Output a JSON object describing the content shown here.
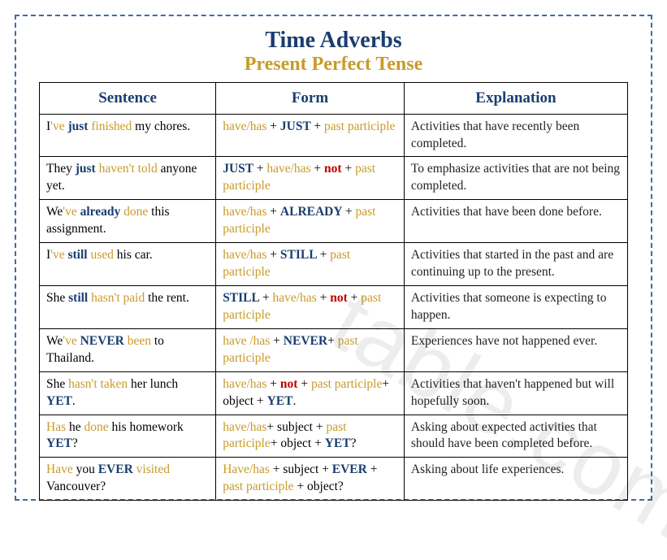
{
  "title": {
    "main": "Time Adverbs",
    "sub": "Present Perfect Tense"
  },
  "headers": {
    "col1": "Sentence",
    "col2": "Form",
    "col3": "Explanation"
  },
  "colors": {
    "navy": "#1a3e6e",
    "gold": "#c89b2a",
    "red": "#c00000",
    "border_dash": "#3a6ea5"
  },
  "rows": [
    {
      "sentence": [
        {
          "t": "I",
          "c": ""
        },
        {
          "t": "'ve ",
          "c": "gold"
        },
        {
          "t": "just ",
          "c": "navy"
        },
        {
          "t": "finished ",
          "c": "gold"
        },
        {
          "t": "my chores.",
          "c": ""
        }
      ],
      "form": [
        {
          "t": "have/has ",
          "c": "gold"
        },
        {
          "t": "+ ",
          "c": ""
        },
        {
          "t": "JUST ",
          "c": "navy"
        },
        {
          "t": "+ ",
          "c": ""
        },
        {
          "t": "past participle",
          "c": "gold"
        }
      ],
      "explanation": "Activities that have recently been completed."
    },
    {
      "sentence": [
        {
          "t": "They ",
          "c": ""
        },
        {
          "t": "just ",
          "c": "navy"
        },
        {
          "t": "haven't ",
          "c": "gold"
        },
        {
          "t": "told ",
          "c": "gold"
        },
        {
          "t": "anyone yet.",
          "c": ""
        }
      ],
      "form": [
        {
          "t": "JUST ",
          "c": "navy"
        },
        {
          "t": "+ ",
          "c": ""
        },
        {
          "t": "have/has ",
          "c": "gold"
        },
        {
          "t": "+ ",
          "c": ""
        },
        {
          "t": "not ",
          "c": "red"
        },
        {
          "t": "+ ",
          "c": ""
        },
        {
          "t": "past participle",
          "c": "gold"
        }
      ],
      "explanation": "To emphasize activities that are not being completed."
    },
    {
      "sentence": [
        {
          "t": "We",
          "c": ""
        },
        {
          "t": "'ve ",
          "c": "gold"
        },
        {
          "t": "already ",
          "c": "navy"
        },
        {
          "t": "done ",
          "c": "gold"
        },
        {
          "t": "this assignment.",
          "c": ""
        }
      ],
      "form": [
        {
          "t": "have/has ",
          "c": "gold"
        },
        {
          "t": "+ ",
          "c": ""
        },
        {
          "t": "ALREADY ",
          "c": "navy"
        },
        {
          "t": "+ ",
          "c": ""
        },
        {
          "t": "past participle",
          "c": "gold"
        }
      ],
      "explanation": "Activities that have been done before."
    },
    {
      "sentence": [
        {
          "t": "I",
          "c": ""
        },
        {
          "t": "'ve ",
          "c": "gold"
        },
        {
          "t": "still ",
          "c": "navy"
        },
        {
          "t": "used ",
          "c": "gold"
        },
        {
          "t": "his car.",
          "c": ""
        }
      ],
      "form": [
        {
          "t": "have/has ",
          "c": "gold"
        },
        {
          "t": "+ ",
          "c": ""
        },
        {
          "t": "STILL ",
          "c": "navy"
        },
        {
          "t": "+ ",
          "c": ""
        },
        {
          "t": "past participle",
          "c": "gold"
        }
      ],
      "explanation": "Activities that started in the past and are continuing up to the present."
    },
    {
      "sentence": [
        {
          "t": "She ",
          "c": ""
        },
        {
          "t": "still ",
          "c": "navy"
        },
        {
          "t": "hasn't ",
          "c": "gold"
        },
        {
          "t": "paid ",
          "c": "gold"
        },
        {
          "t": "the rent.",
          "c": ""
        }
      ],
      "form": [
        {
          "t": "STILL ",
          "c": "navy"
        },
        {
          "t": "+ ",
          "c": ""
        },
        {
          "t": "have/has ",
          "c": "gold"
        },
        {
          "t": "+ ",
          "c": ""
        },
        {
          "t": "not ",
          "c": "red"
        },
        {
          "t": "+ ",
          "c": ""
        },
        {
          "t": "past participle",
          "c": "gold"
        }
      ],
      "explanation": "Activities that someone is expecting to happen."
    },
    {
      "sentence": [
        {
          "t": "We",
          "c": ""
        },
        {
          "t": "'ve ",
          "c": "gold"
        },
        {
          "t": "NEVER ",
          "c": "navy"
        },
        {
          "t": "been ",
          "c": "gold"
        },
        {
          "t": "to Thailand.",
          "c": ""
        }
      ],
      "form": [
        {
          "t": "have /has ",
          "c": "gold"
        },
        {
          "t": "+ ",
          "c": ""
        },
        {
          "t": "NEVER",
          "c": "navy"
        },
        {
          "t": "+ ",
          "c": ""
        },
        {
          "t": "past participle",
          "c": "gold"
        }
      ],
      "explanation": "Experiences have not happened ever."
    },
    {
      "sentence": [
        {
          "t": "She ",
          "c": ""
        },
        {
          "t": "hasn't ",
          "c": "gold"
        },
        {
          "t": "taken ",
          "c": "gold"
        },
        {
          "t": "her lunch ",
          "c": ""
        },
        {
          "t": "YET",
          "c": "navy"
        },
        {
          "t": ".",
          "c": ""
        }
      ],
      "form": [
        {
          "t": "have/has ",
          "c": "gold"
        },
        {
          "t": "+ ",
          "c": ""
        },
        {
          "t": "not ",
          "c": "red"
        },
        {
          "t": "+ ",
          "c": ""
        },
        {
          "t": "past participle",
          "c": "gold"
        },
        {
          "t": "+ object + ",
          "c": ""
        },
        {
          "t": "YET",
          "c": "navy"
        },
        {
          "t": ".",
          "c": ""
        }
      ],
      "explanation": "Activities that haven't happened but will hopefully soon."
    },
    {
      "sentence": [
        {
          "t": "Has ",
          "c": "gold"
        },
        {
          "t": "he ",
          "c": ""
        },
        {
          "t": "done ",
          "c": "gold"
        },
        {
          "t": "his homework ",
          "c": ""
        },
        {
          "t": "YET",
          "c": "navy"
        },
        {
          "t": "?",
          "c": ""
        }
      ],
      "form": [
        {
          "t": "have/has",
          "c": "gold"
        },
        {
          "t": "+ subject + ",
          "c": ""
        },
        {
          "t": "past participle",
          "c": "gold"
        },
        {
          "t": "+ object + ",
          "c": ""
        },
        {
          "t": "YET",
          "c": "navy"
        },
        {
          "t": "?",
          "c": ""
        }
      ],
      "explanation": "Asking about expected activities that should have been completed before."
    },
    {
      "sentence": [
        {
          "t": "Have ",
          "c": "gold"
        },
        {
          "t": "you ",
          "c": ""
        },
        {
          "t": "EVER ",
          "c": "navy"
        },
        {
          "t": "visited ",
          "c": "gold"
        },
        {
          "t": "Vancouver?",
          "c": ""
        }
      ],
      "form": [
        {
          "t": "Have/has ",
          "c": "gold"
        },
        {
          "t": "+ subject + ",
          "c": ""
        },
        {
          "t": "EVER ",
          "c": "navy"
        },
        {
          "t": "+ ",
          "c": ""
        },
        {
          "t": "past participle ",
          "c": "gold"
        },
        {
          "t": "+ object?",
          "c": ""
        }
      ],
      "explanation": "Asking about life experiences."
    }
  ],
  "watermark": "table.com"
}
